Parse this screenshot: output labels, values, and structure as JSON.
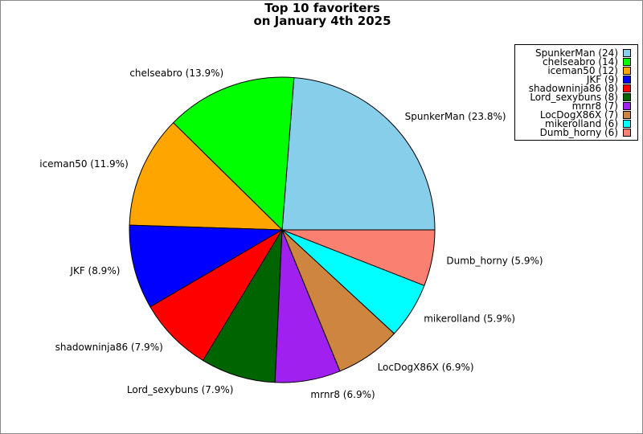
{
  "chart_data": {
    "type": "pie",
    "title": "Top 10 favoriters",
    "subtitle": "on January 4th 2025",
    "legend_position": "top-right",
    "start_angle": "east, counterclockwise",
    "slices": [
      {
        "label": "SpunkerMan",
        "value": 24,
        "percent": "23.8%",
        "color": "#87CEEB"
      },
      {
        "label": "chelseabro",
        "value": 14,
        "percent": "13.9%",
        "color": "#00FF00"
      },
      {
        "label": "iceman50",
        "value": 12,
        "percent": "11.9%",
        "color": "#FFA500"
      },
      {
        "label": "JKF",
        "value": 9,
        "percent": "8.9%",
        "color": "#0000FF"
      },
      {
        "label": "shadowninja86",
        "value": 8,
        "percent": "7.9%",
        "color": "#FF0000"
      },
      {
        "label": "Lord_sexybuns",
        "value": 8,
        "percent": "7.9%",
        "color": "#006400"
      },
      {
        "label": "mrnr8",
        "value": 7,
        "percent": "6.9%",
        "color": "#A020F0"
      },
      {
        "label": "LocDogX86X",
        "value": 7,
        "percent": "6.9%",
        "color": "#CD853F"
      },
      {
        "label": "mikerolland",
        "value": 6,
        "percent": "5.9%",
        "color": "#00FFFF"
      },
      {
        "label": "Dumb_horny",
        "value": 6,
        "percent": "5.9%",
        "color": "#FA8072"
      }
    ]
  }
}
